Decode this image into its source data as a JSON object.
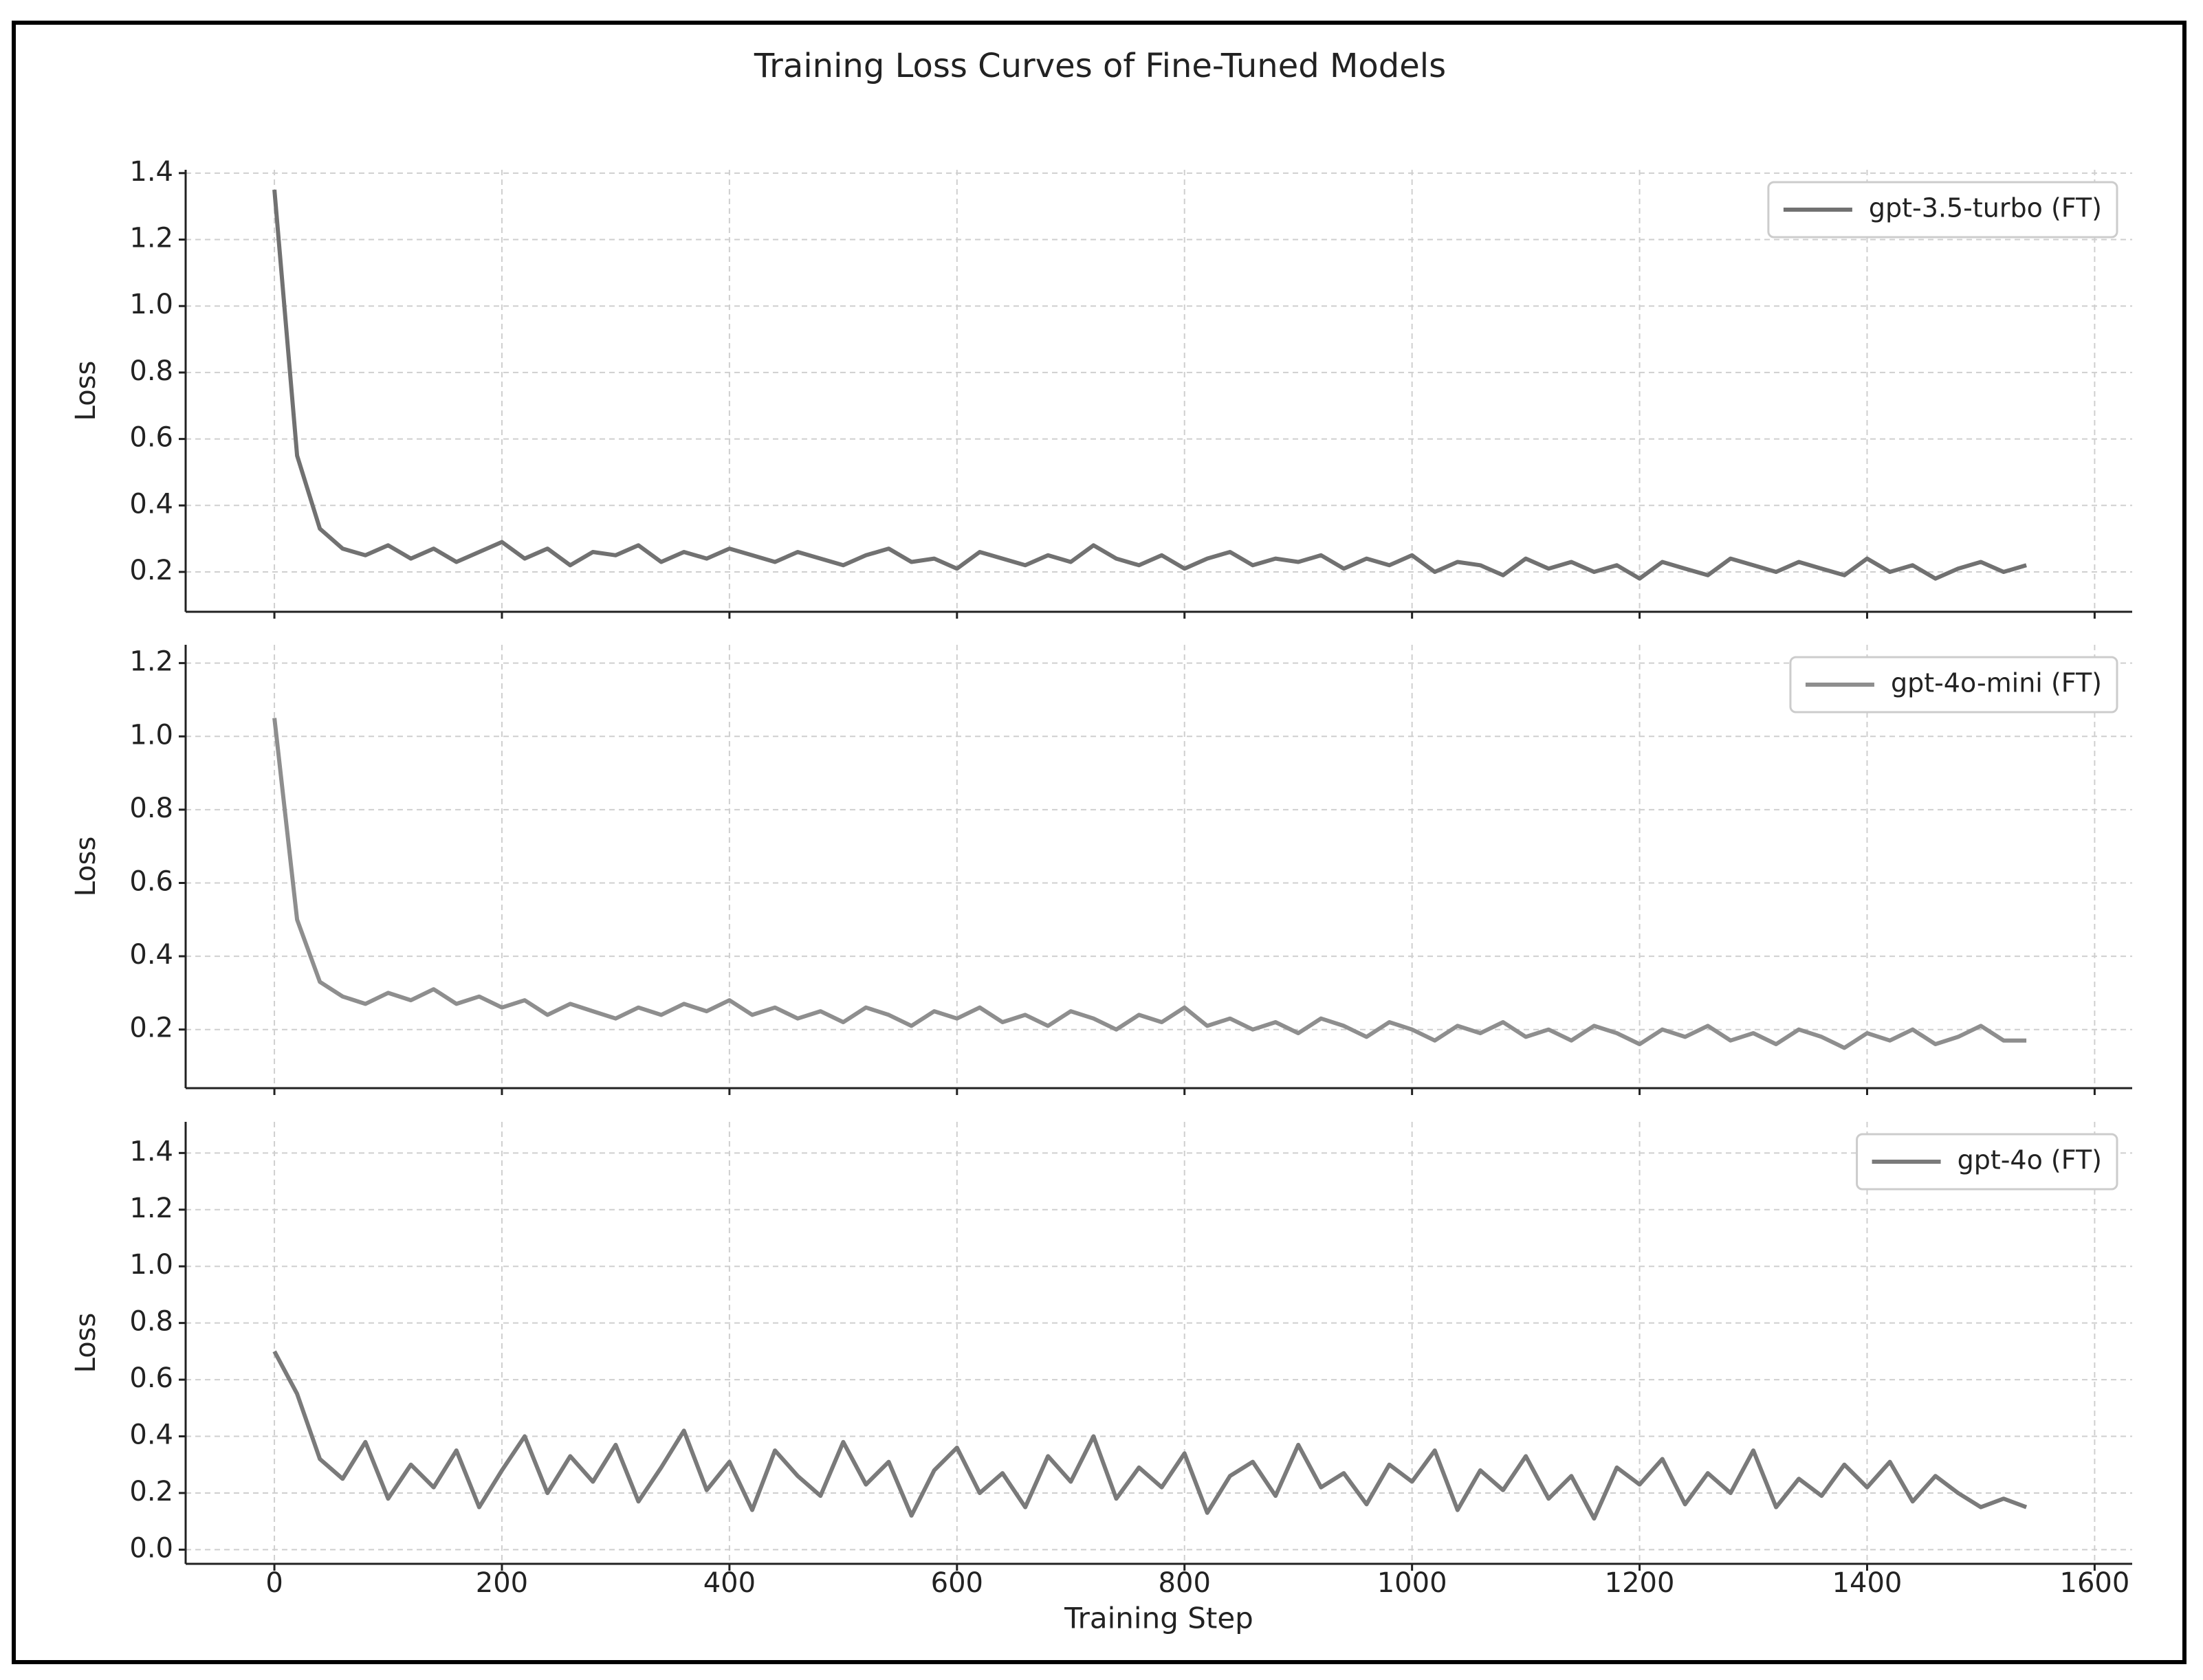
{
  "title": "Training Loss Curves of Fine-Tuned Models",
  "chart_data": [
    {
      "type": "line",
      "ylabel": "Loss",
      "legend": "upper right",
      "grid": true,
      "x": [
        0,
        20,
        40,
        60,
        80,
        100,
        120,
        140,
        160,
        180,
        200,
        220,
        240,
        260,
        280,
        300,
        320,
        340,
        360,
        380,
        400,
        420,
        440,
        460,
        480,
        500,
        520,
        540,
        560,
        580,
        600,
        620,
        640,
        660,
        680,
        700,
        720,
        740,
        760,
        780,
        800,
        820,
        840,
        860,
        880,
        900,
        920,
        940,
        960,
        980,
        1000,
        1020,
        1040,
        1060,
        1080,
        1100,
        1120,
        1140,
        1160,
        1180,
        1200,
        1220,
        1240,
        1260,
        1280,
        1300,
        1320,
        1340,
        1360,
        1380,
        1400,
        1420,
        1440,
        1460,
        1480,
        1500,
        1520,
        1540
      ],
      "xlim": [
        -78,
        1633
      ],
      "xticks": [
        0,
        200,
        400,
        600,
        800,
        1000,
        1200,
        1400,
        1600
      ],
      "ylim": [
        0.08,
        1.41
      ],
      "yticks": [
        0.2,
        0.4,
        0.6,
        0.8,
        {
          "value": 1,
          "label": "1.0"
        },
        1.2,
        1.4
      ],
      "series": [
        {
          "name": "gpt-3.5-turbo (FT)",
          "color": "#717171",
          "values": [
            1.35,
            0.55,
            0.33,
            0.27,
            0.25,
            0.28,
            0.24,
            0.27,
            0.23,
            0.26,
            0.29,
            0.24,
            0.27,
            0.22,
            0.26,
            0.25,
            0.28,
            0.23,
            0.26,
            0.24,
            0.27,
            0.25,
            0.23,
            0.26,
            0.24,
            0.22,
            0.25,
            0.27,
            0.23,
            0.24,
            0.21,
            0.26,
            0.24,
            0.22,
            0.25,
            0.23,
            0.28,
            0.24,
            0.22,
            0.25,
            0.21,
            0.24,
            0.26,
            0.22,
            0.24,
            0.23,
            0.25,
            0.21,
            0.24,
            0.22,
            0.25,
            0.2,
            0.23,
            0.22,
            0.19,
            0.24,
            0.21,
            0.23,
            0.2,
            0.22,
            0.18,
            0.23,
            0.21,
            0.19,
            0.24,
            0.22,
            0.2,
            0.23,
            0.21,
            0.19,
            0.24,
            0.2,
            0.22,
            0.18,
            0.21,
            0.23,
            0.2,
            0.22
          ]
        }
      ]
    },
    {
      "type": "line",
      "ylabel": "Loss",
      "legend": "upper right",
      "grid": true,
      "x": [
        0,
        20,
        40,
        60,
        80,
        100,
        120,
        140,
        160,
        180,
        200,
        220,
        240,
        260,
        280,
        300,
        320,
        340,
        360,
        380,
        400,
        420,
        440,
        460,
        480,
        500,
        520,
        540,
        560,
        580,
        600,
        620,
        640,
        660,
        680,
        700,
        720,
        740,
        760,
        780,
        800,
        820,
        840,
        860,
        880,
        900,
        920,
        940,
        960,
        980,
        1000,
        1020,
        1040,
        1060,
        1080,
        1100,
        1120,
        1140,
        1160,
        1180,
        1200,
        1220,
        1240,
        1260,
        1280,
        1300,
        1320,
        1340,
        1360,
        1380,
        1400,
        1420,
        1440,
        1460,
        1480,
        1500,
        1520,
        1540
      ],
      "xlim": [
        -78,
        1633
      ],
      "xticks": [
        0,
        200,
        400,
        600,
        800,
        1000,
        1200,
        1400,
        1600
      ],
      "ylim": [
        0.04,
        1.25
      ],
      "yticks": [
        0.2,
        0.4,
        0.6,
        0.8,
        {
          "value": 1,
          "label": "1.0"
        },
        1.2
      ],
      "series": [
        {
          "name": "gpt-4o-mini (FT)",
          "color": "#8e8e8e",
          "values": [
            1.05,
            0.5,
            0.33,
            0.29,
            0.27,
            0.3,
            0.28,
            0.31,
            0.27,
            0.29,
            0.26,
            0.28,
            0.24,
            0.27,
            0.25,
            0.23,
            0.26,
            0.24,
            0.27,
            0.25,
            0.28,
            0.24,
            0.26,
            0.23,
            0.25,
            0.22,
            0.26,
            0.24,
            0.21,
            0.25,
            0.23,
            0.26,
            0.22,
            0.24,
            0.21,
            0.25,
            0.23,
            0.2,
            0.24,
            0.22,
            0.26,
            0.21,
            0.23,
            0.2,
            0.22,
            0.19,
            0.23,
            0.21,
            0.18,
            0.22,
            0.2,
            0.17,
            0.21,
            0.19,
            0.22,
            0.18,
            0.2,
            0.17,
            0.21,
            0.19,
            0.16,
            0.2,
            0.18,
            0.21,
            0.17,
            0.19,
            0.16,
            0.2,
            0.18,
            0.15,
            0.19,
            0.17,
            0.2,
            0.16,
            0.18,
            0.21,
            0.17,
            0.17
          ]
        }
      ]
    },
    {
      "type": "line",
      "ylabel": "Loss",
      "xlabel": "Training Step",
      "legend": "upper right",
      "grid": true,
      "x": [
        0,
        20,
        40,
        60,
        80,
        100,
        120,
        140,
        160,
        180,
        200,
        220,
        240,
        260,
        280,
        300,
        320,
        340,
        360,
        380,
        400,
        420,
        440,
        460,
        480,
        500,
        520,
        540,
        560,
        580,
        600,
        620,
        640,
        660,
        680,
        700,
        720,
        740,
        760,
        780,
        800,
        820,
        840,
        860,
        880,
        900,
        920,
        940,
        960,
        980,
        1000,
        1020,
        1040,
        1060,
        1080,
        1100,
        1120,
        1140,
        1160,
        1180,
        1200,
        1220,
        1240,
        1260,
        1280,
        1300,
        1320,
        1340,
        1360,
        1380,
        1400,
        1420,
        1440,
        1460,
        1480,
        1500,
        1520,
        1540
      ],
      "xlim": [
        -78,
        1633
      ],
      "xticks": [
        0,
        200,
        400,
        600,
        800,
        1000,
        1200,
        1400,
        1600
      ],
      "ylim": [
        -0.05,
        1.51
      ],
      "yticks": [
        {
          "value": 0,
          "label": "0.0"
        },
        0.2,
        0.4,
        0.6,
        0.8,
        {
          "value": 1,
          "label": "1.0"
        },
        1.2,
        1.4
      ],
      "series": [
        {
          "name": "gpt-4o (FT)",
          "color": "#7a7a7a",
          "values": [
            0.7,
            0.55,
            0.32,
            0.25,
            0.38,
            0.18,
            0.3,
            0.22,
            0.35,
            0.15,
            0.28,
            0.4,
            0.2,
            0.33,
            0.24,
            0.37,
            0.17,
            0.29,
            0.42,
            0.21,
            0.31,
            0.14,
            0.35,
            0.26,
            0.19,
            0.38,
            0.23,
            0.31,
            0.12,
            0.28,
            0.36,
            0.2,
            0.27,
            0.15,
            0.33,
            0.24,
            0.4,
            0.18,
            0.29,
            0.22,
            0.34,
            0.13,
            0.26,
            0.31,
            0.19,
            0.37,
            0.22,
            0.27,
            0.16,
            0.3,
            0.24,
            0.35,
            0.14,
            0.28,
            0.21,
            0.33,
            0.18,
            0.26,
            0.11,
            0.29,
            0.23,
            0.32,
            0.16,
            0.27,
            0.2,
            0.35,
            0.15,
            0.25,
            0.19,
            0.3,
            0.22,
            0.31,
            0.17,
            0.26,
            0.2,
            0.15,
            0.18,
            0.15
          ]
        }
      ]
    }
  ]
}
